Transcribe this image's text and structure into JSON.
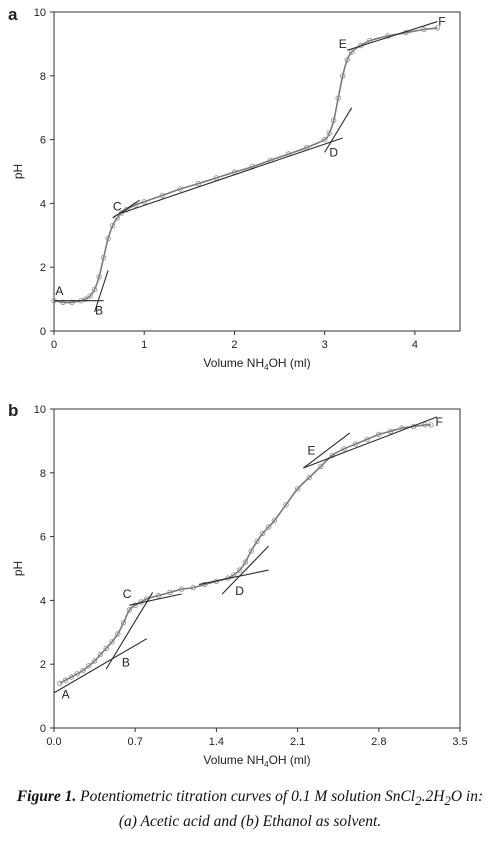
{
  "chart_data": [
    {
      "panel": "a",
      "type": "line",
      "xlabel_main": "Volume NH",
      "xlabel_sub": "4",
      "xlabel_tail": "OH (ml)",
      "ylabel": "pH",
      "xlim": [
        0,
        4.5
      ],
      "ylim": [
        0,
        10
      ],
      "xticks": [
        0,
        1,
        2,
        3,
        4
      ],
      "xtick_labels": [
        "0",
        "1",
        "2",
        "3",
        "4"
      ],
      "yticks": [
        0,
        2,
        4,
        6,
        8,
        10
      ],
      "ytick_labels": [
        "0",
        "2",
        "4",
        "6",
        "8",
        "10"
      ],
      "series": [
        {
          "x": [
            0.0,
            0.1,
            0.2,
            0.3,
            0.35,
            0.4,
            0.45,
            0.5,
            0.55,
            0.6,
            0.65,
            0.7,
            0.75,
            0.8,
            0.9,
            1.0,
            1.2,
            1.4,
            1.6,
            1.8,
            2.0,
            2.2,
            2.4,
            2.6,
            2.8,
            3.0,
            3.05,
            3.1,
            3.15,
            3.2,
            3.25,
            3.3,
            3.4,
            3.5,
            3.7,
            3.9,
            4.1,
            4.25
          ],
          "y": [
            0.95,
            0.9,
            0.9,
            0.95,
            1.0,
            1.1,
            1.3,
            1.7,
            2.3,
            2.9,
            3.3,
            3.55,
            3.7,
            3.8,
            3.95,
            4.05,
            4.25,
            4.45,
            4.62,
            4.8,
            4.98,
            5.15,
            5.35,
            5.55,
            5.75,
            6.0,
            6.2,
            6.6,
            7.3,
            8.0,
            8.5,
            8.75,
            8.95,
            9.1,
            9.25,
            9.35,
            9.45,
            9.5
          ],
          "markers": true
        }
      ],
      "tangent_lines": [
        {
          "x": [
            0.0,
            0.55
          ],
          "y": [
            0.95,
            0.95
          ]
        },
        {
          "x": [
            0.45,
            0.6
          ],
          "y": [
            0.6,
            1.9
          ]
        },
        {
          "x": [
            0.65,
            0.95
          ],
          "y": [
            3.55,
            4.1
          ]
        },
        {
          "x": [
            0.75,
            3.2
          ],
          "y": [
            3.7,
            6.05
          ]
        },
        {
          "x": [
            3.0,
            3.3
          ],
          "y": [
            5.6,
            7.0
          ]
        },
        {
          "x": [
            3.25,
            4.25
          ],
          "y": [
            8.8,
            9.7
          ]
        }
      ],
      "point_labels": [
        {
          "text": "A",
          "x": 0.06,
          "y": 1.25
        },
        {
          "text": "B",
          "x": 0.5,
          "y": 0.65
        },
        {
          "text": "C",
          "x": 0.7,
          "y": 3.9
        },
        {
          "text": "D",
          "x": 3.1,
          "y": 5.6
        },
        {
          "text": "E",
          "x": 3.2,
          "y": 9.0
        },
        {
          "text": "F",
          "x": 4.3,
          "y": 9.7
        }
      ]
    },
    {
      "panel": "b",
      "type": "line",
      "xlabel_main": "Volume NH",
      "xlabel_sub": "4",
      "xlabel_tail": "OH (ml)",
      "ylabel": "pH",
      "xlim": [
        0,
        3.5
      ],
      "ylim": [
        0,
        10
      ],
      "xticks": [
        0.0,
        0.7,
        1.4,
        2.1,
        2.8,
        3.5
      ],
      "xtick_labels": [
        "0.0",
        "0.7",
        "1.4",
        "2.1",
        "2.8",
        "3.5"
      ],
      "yticks": [
        0,
        2,
        4,
        6,
        8,
        10
      ],
      "ytick_labels": [
        "0",
        "2",
        "4",
        "6",
        "8",
        "10"
      ],
      "series": [
        {
          "x": [
            0.05,
            0.1,
            0.15,
            0.2,
            0.25,
            0.3,
            0.35,
            0.4,
            0.45,
            0.5,
            0.55,
            0.6,
            0.65,
            0.7,
            0.75,
            0.8,
            0.9,
            1.0,
            1.1,
            1.2,
            1.3,
            1.4,
            1.5,
            1.55,
            1.6,
            1.65,
            1.7,
            1.75,
            1.8,
            1.85,
            1.9,
            2.0,
            2.1,
            2.2,
            2.3,
            2.4,
            2.5,
            2.6,
            2.7,
            2.8,
            2.9,
            3.0,
            3.1,
            3.2,
            3.25
          ],
          "y": [
            1.4,
            1.5,
            1.6,
            1.7,
            1.8,
            1.95,
            2.1,
            2.3,
            2.5,
            2.7,
            2.95,
            3.3,
            3.7,
            3.85,
            3.95,
            4.05,
            4.15,
            4.25,
            4.35,
            4.4,
            4.5,
            4.6,
            4.7,
            4.8,
            4.95,
            5.2,
            5.55,
            5.85,
            6.1,
            6.3,
            6.5,
            7.0,
            7.5,
            7.85,
            8.2,
            8.55,
            8.75,
            8.9,
            9.05,
            9.2,
            9.3,
            9.4,
            9.45,
            9.5,
            9.5
          ],
          "markers": true
        }
      ],
      "tangent_lines": [
        {
          "x": [
            0.0,
            0.8
          ],
          "y": [
            1.1,
            2.8
          ]
        },
        {
          "x": [
            0.45,
            0.85
          ],
          "y": [
            1.85,
            4.25
          ]
        },
        {
          "x": [
            0.65,
            1.1
          ],
          "y": [
            3.85,
            4.2
          ]
        },
        {
          "x": [
            1.25,
            1.85
          ],
          "y": [
            4.5,
            4.95
          ]
        },
        {
          "x": [
            1.45,
            1.85
          ],
          "y": [
            4.2,
            5.7
          ]
        },
        {
          "x": [
            2.15,
            2.55
          ],
          "y": [
            8.15,
            9.25
          ]
        },
        {
          "x": [
            2.15,
            3.3
          ],
          "y": [
            8.15,
            9.75
          ]
        }
      ],
      "point_labels": [
        {
          "text": "A",
          "x": 0.1,
          "y": 1.05
        },
        {
          "text": "B",
          "x": 0.62,
          "y": 2.05
        },
        {
          "text": "C",
          "x": 0.63,
          "y": 4.2
        },
        {
          "text": "D",
          "x": 1.6,
          "y": 4.3
        },
        {
          "text": "E",
          "x": 2.22,
          "y": 8.7
        },
        {
          "text": "F",
          "x": 3.32,
          "y": 9.6
        }
      ]
    }
  ],
  "caption": {
    "lead": "Figure 1.",
    "rest": " Potentiometric titration curves of 0.1 M solution SnCl",
    "sub1": "2",
    "mid": ".2H",
    "sub2": "2",
    "tail": "O in: (a) Acetic acid and (b) Ethanol as solvent."
  }
}
